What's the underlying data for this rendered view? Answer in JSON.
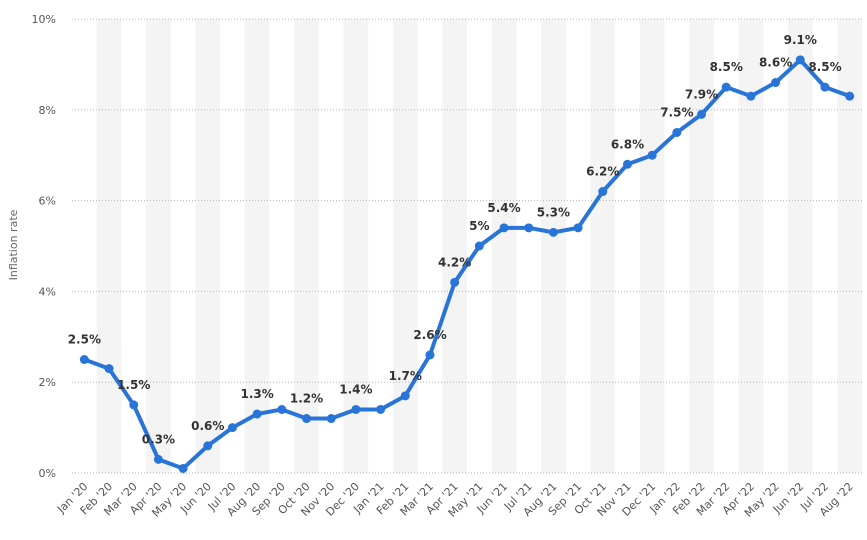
{
  "chart_data": {
    "type": "line",
    "title": "",
    "xlabel": "",
    "ylabel": "Inflation rate",
    "ylim": [
      0,
      10
    ],
    "yticks": [
      "0%",
      "2%",
      "4%",
      "6%",
      "8%",
      "10%"
    ],
    "grid": true,
    "color": "#2874d8",
    "categories": [
      "Jan '20",
      "Feb '20",
      "Mar '20",
      "Apr '20",
      "May '20",
      "Jun '20",
      "Jul '20",
      "Aug '20",
      "Sep '20",
      "Oct '20",
      "Nov '20",
      "Dec '20",
      "Jan '21",
      "Feb '21",
      "Mar '21",
      "Apr '21",
      "May '21",
      "Jun '21",
      "Jul '21",
      "Aug '21",
      "Sep '21",
      "Oct '21",
      "Nov '21",
      "Dec '21",
      "Jan '22",
      "Feb '22",
      "Mar '22",
      "Apr '22",
      "May '22",
      "Jun '22",
      "Jul '22",
      "Aug '22"
    ],
    "values": [
      2.5,
      2.3,
      1.5,
      0.3,
      0.1,
      0.6,
      1.0,
      1.3,
      1.4,
      1.2,
      1.2,
      1.4,
      1.4,
      1.7,
      2.6,
      4.2,
      5.0,
      5.4,
      5.4,
      5.3,
      5.4,
      6.2,
      6.8,
      7.0,
      7.5,
      7.9,
      8.5,
      8.3,
      8.6,
      9.1,
      8.5,
      8.3
    ],
    "data_labels": [
      {
        "index": 0,
        "text": "2.5%"
      },
      {
        "index": 2,
        "text": "1.5%"
      },
      {
        "index": 3,
        "text": "0.3%"
      },
      {
        "index": 5,
        "text": "0.6%"
      },
      {
        "index": 7,
        "text": "1.3%"
      },
      {
        "index": 9,
        "text": "1.2%"
      },
      {
        "index": 11,
        "text": "1.4%"
      },
      {
        "index": 13,
        "text": "1.7%"
      },
      {
        "index": 14,
        "text": "2.6%"
      },
      {
        "index": 15,
        "text": "4.2%"
      },
      {
        "index": 16,
        "text": "5%"
      },
      {
        "index": 17,
        "text": "5.4%"
      },
      {
        "index": 19,
        "text": "5.3%"
      },
      {
        "index": 21,
        "text": "6.2%"
      },
      {
        "index": 22,
        "text": "6.8%"
      },
      {
        "index": 24,
        "text": "7.5%"
      },
      {
        "index": 25,
        "text": "7.9%"
      },
      {
        "index": 26,
        "text": "8.5%"
      },
      {
        "index": 28,
        "text": "8.6%"
      },
      {
        "index": 29,
        "text": "9.1%"
      },
      {
        "index": 30,
        "text": "8.5%"
      }
    ]
  }
}
